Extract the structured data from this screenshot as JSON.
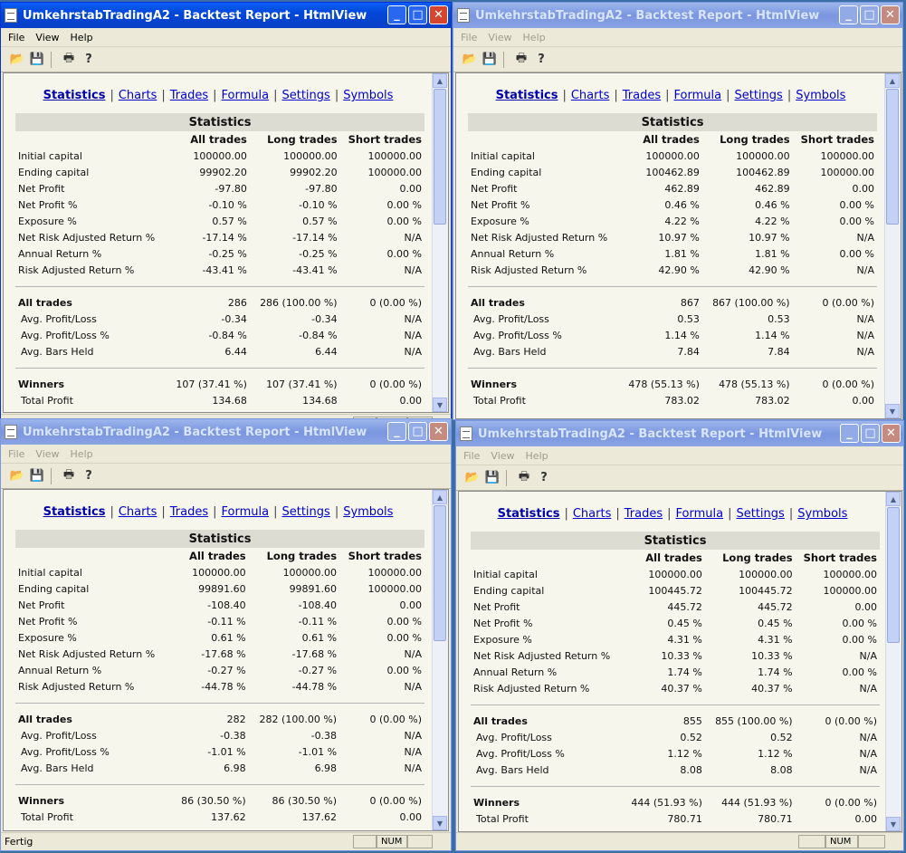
{
  "app": {
    "title": "UmkehrstabTradingA2 - Backtest Report - HtmlView",
    "menu": [
      "File",
      "View",
      "Help"
    ],
    "nav": [
      "Statistics",
      "Charts",
      "Trades",
      "Formula",
      "Settings",
      "Symbols"
    ],
    "table_title": "Statistics",
    "columns": [
      "All trades",
      "Long trades",
      "Short trades"
    ],
    "status": "Fertig",
    "num_indicator": "NUM",
    "row_labels": [
      "Initial capital",
      "Ending capital",
      "Net Profit",
      "Net Profit %",
      "Exposure %",
      "Net Risk Adjusted Return %",
      "Annual Return %",
      "Risk Adjusted Return %",
      "All trades",
      "Avg. Profit/Loss",
      "Avg. Profit/Loss %",
      "Avg. Bars Held",
      "Winners",
      "Total Profit"
    ]
  },
  "windows": [
    {
      "id": "top-left",
      "state": "active",
      "status_visible": true,
      "rows": [
        [
          "100000.00",
          "100000.00",
          "100000.00"
        ],
        [
          "99902.20",
          "99902.20",
          "100000.00"
        ],
        [
          "-97.80",
          "-97.80",
          "0.00"
        ],
        [
          "-0.10 %",
          "-0.10 %",
          "0.00 %"
        ],
        [
          "0.57 %",
          "0.57 %",
          "0.00 %"
        ],
        [
          "-17.14 %",
          "-17.14 %",
          "N/A"
        ],
        [
          "-0.25 %",
          "-0.25 %",
          "0.00 %"
        ],
        [
          "-43.41 %",
          "-43.41 %",
          "N/A"
        ],
        [
          "286",
          "286 (100.00 %)",
          "0 (0.00 %)"
        ],
        [
          "-0.34",
          "-0.34",
          "N/A"
        ],
        [
          "-0.84 %",
          "-0.84 %",
          "N/A"
        ],
        [
          "6.44",
          "6.44",
          "N/A"
        ],
        [
          "107 (37.41 %)",
          "107 (37.41 %)",
          "0 (0.00 %)"
        ],
        [
          "134.68",
          "134.68",
          "0.00"
        ]
      ]
    },
    {
      "id": "top-right",
      "state": "inactive",
      "status_visible": false,
      "rows": [
        [
          "100000.00",
          "100000.00",
          "100000.00"
        ],
        [
          "100462.89",
          "100462.89",
          "100000.00"
        ],
        [
          "462.89",
          "462.89",
          "0.00"
        ],
        [
          "0.46 %",
          "0.46 %",
          "0.00 %"
        ],
        [
          "4.22 %",
          "4.22 %",
          "0.00 %"
        ],
        [
          "10.97 %",
          "10.97 %",
          "N/A"
        ],
        [
          "1.81 %",
          "1.81 %",
          "0.00 %"
        ],
        [
          "42.90 %",
          "42.90 %",
          "N/A"
        ],
        [
          "867",
          "867 (100.00 %)",
          "0 (0.00 %)"
        ],
        [
          "0.53",
          "0.53",
          "N/A"
        ],
        [
          "1.14 %",
          "1.14 %",
          "N/A"
        ],
        [
          "7.84",
          "7.84",
          "N/A"
        ],
        [
          "478 (55.13 %)",
          "478 (55.13 %)",
          "0 (0.00 %)"
        ],
        [
          "783.02",
          "783.02",
          "0.00"
        ]
      ]
    },
    {
      "id": "bottom-left",
      "state": "inactive",
      "status_visible": true,
      "rows": [
        [
          "100000.00",
          "100000.00",
          "100000.00"
        ],
        [
          "99891.60",
          "99891.60",
          "100000.00"
        ],
        [
          "-108.40",
          "-108.40",
          "0.00"
        ],
        [
          "-0.11 %",
          "-0.11 %",
          "0.00 %"
        ],
        [
          "0.61 %",
          "0.61 %",
          "0.00 %"
        ],
        [
          "-17.68 %",
          "-17.68 %",
          "N/A"
        ],
        [
          "-0.27 %",
          "-0.27 %",
          "0.00 %"
        ],
        [
          "-44.78 %",
          "-44.78 %",
          "N/A"
        ],
        [
          "282",
          "282 (100.00 %)",
          "0 (0.00 %)"
        ],
        [
          "-0.38",
          "-0.38",
          "N/A"
        ],
        [
          "-1.01 %",
          "-1.01 %",
          "N/A"
        ],
        [
          "6.98",
          "6.98",
          "N/A"
        ],
        [
          "86 (30.50 %)",
          "86 (30.50 %)",
          "0 (0.00 %)"
        ],
        [
          "137.62",
          "137.62",
          "0.00"
        ]
      ]
    },
    {
      "id": "bottom-right",
      "state": "inactive",
      "status_visible": true,
      "rows": [
        [
          "100000.00",
          "100000.00",
          "100000.00"
        ],
        [
          "100445.72",
          "100445.72",
          "100000.00"
        ],
        [
          "445.72",
          "445.72",
          "0.00"
        ],
        [
          "0.45 %",
          "0.45 %",
          "0.00 %"
        ],
        [
          "4.31 %",
          "4.31 %",
          "0.00 %"
        ],
        [
          "10.33 %",
          "10.33 %",
          "N/A"
        ],
        [
          "1.74 %",
          "1.74 %",
          "0.00 %"
        ],
        [
          "40.37 %",
          "40.37 %",
          "N/A"
        ],
        [
          "855",
          "855 (100.00 %)",
          "0 (0.00 %)"
        ],
        [
          "0.52",
          "0.52",
          "N/A"
        ],
        [
          "1.12 %",
          "1.12 %",
          "N/A"
        ],
        [
          "8.08",
          "8.08",
          "N/A"
        ],
        [
          "444 (51.93 %)",
          "444 (51.93 %)",
          "0 (0.00 %)"
        ],
        [
          "780.71",
          "780.71",
          "0.00"
        ]
      ]
    }
  ]
}
